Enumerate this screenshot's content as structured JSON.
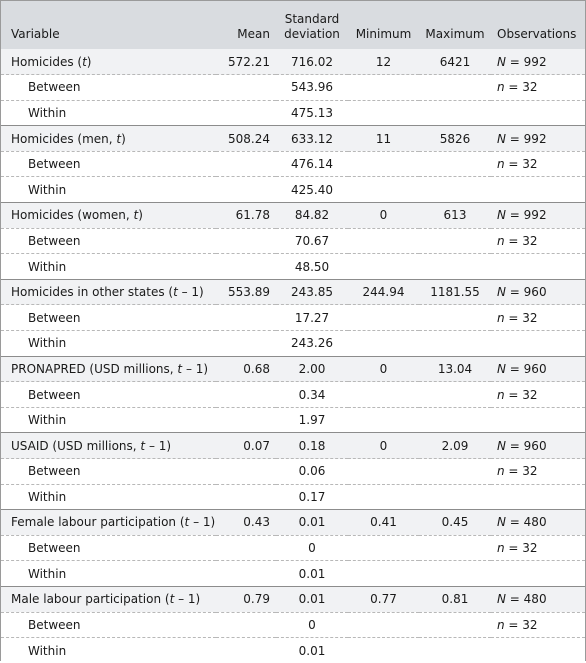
{
  "header": {
    "variable": "Variable",
    "mean": "Mean",
    "sd_line1": "Standard",
    "sd_line2": "deviation",
    "minimum": "Minimum",
    "maximum": "Maximum",
    "observations": "Observations"
  },
  "rows": [
    {
      "kind": "main",
      "label": "Homicides (",
      "label_it": "t",
      "label_post": ")",
      "mean": "572.21",
      "sd": "716.02",
      "min": "12",
      "max": "6421",
      "obs_var": "N",
      "obs_val": " = 992"
    },
    {
      "kind": "sub",
      "label": "Between",
      "sd": "543.96",
      "obs_var": "n",
      "obs_val": " = 32"
    },
    {
      "kind": "sub",
      "label": "Within",
      "sd": "475.13"
    },
    {
      "kind": "main",
      "label": "Homicides (men, ",
      "label_it": "t",
      "label_post": ")",
      "mean": "508.24",
      "sd": "633.12",
      "min": "11",
      "max": "5826",
      "obs_var": "N",
      "obs_val": " = 992"
    },
    {
      "kind": "sub",
      "label": "Between",
      "sd": "476.14",
      "obs_var": "n",
      "obs_val": " = 32"
    },
    {
      "kind": "sub",
      "label": "Within",
      "sd": "425.40"
    },
    {
      "kind": "main",
      "label": "Homicides (women, ",
      "label_it": "t",
      "label_post": ")",
      "mean": "61.78",
      "sd": "84.82",
      "min": "0",
      "max": "613",
      "obs_var": "N",
      "obs_val": " = 992"
    },
    {
      "kind": "sub",
      "label": "Between",
      "sd": "70.67",
      "obs_var": "n",
      "obs_val": " = 32"
    },
    {
      "kind": "sub",
      "label": "Within",
      "sd": "48.50"
    },
    {
      "kind": "main",
      "label": "Homicides in other states (",
      "label_it": "t",
      "label_post": " – 1)",
      "mean": "553.89",
      "sd": "243.85",
      "min": "244.94",
      "max": "1181.55",
      "obs_var": "N",
      "obs_val": " = 960"
    },
    {
      "kind": "sub",
      "label": "Between",
      "sd": "17.27",
      "obs_var": "n",
      "obs_val": " = 32"
    },
    {
      "kind": "sub",
      "label": "Within",
      "sd": "243.26"
    },
    {
      "kind": "main",
      "label": "PRONAPRED (USD millions, ",
      "label_it": "t",
      "label_post": " – 1)",
      "mean": "0.68",
      "sd": "2.00",
      "min": "0",
      "max": "13.04",
      "obs_var": "N",
      "obs_val": " = 960"
    },
    {
      "kind": "sub",
      "label": "Between",
      "sd": "0.34",
      "obs_var": "n",
      "obs_val": " = 32"
    },
    {
      "kind": "sub",
      "label": "Within",
      "sd": "1.97"
    },
    {
      "kind": "main",
      "label": "USAID (USD millions, ",
      "label_it": "t",
      "label_post": " – 1)",
      "mean": "0.07",
      "sd": "0.18",
      "min": "0",
      "max": "2.09",
      "obs_var": "N",
      "obs_val": " = 960"
    },
    {
      "kind": "sub",
      "label": "Between",
      "sd": "0.06",
      "obs_var": "n",
      "obs_val": " = 32"
    },
    {
      "kind": "sub",
      "label": "Within",
      "sd": "0.17"
    },
    {
      "kind": "main",
      "label": "Female labour participation (",
      "label_it": "t",
      "label_post": " – 1)",
      "mean": "0.43",
      "sd": "0.01",
      "min": "0.41",
      "max": "0.45",
      "obs_var": "N",
      "obs_val": " = 480"
    },
    {
      "kind": "sub",
      "label": "Between",
      "sd": "0",
      "obs_var": "n",
      "obs_val": " = 32"
    },
    {
      "kind": "sub",
      "label": "Within",
      "sd": "0.01"
    },
    {
      "kind": "main",
      "label": "Male labour participation (",
      "label_it": "t",
      "label_post": " – 1)",
      "mean": "0.79",
      "sd": "0.01",
      "min": "0.77",
      "max": "0.81",
      "obs_var": "N",
      "obs_val": " = 480"
    },
    {
      "kind": "sub",
      "label": "Between",
      "sd": "0",
      "obs_var": "n",
      "obs_val": " = 32"
    },
    {
      "kind": "sub",
      "label": "Within",
      "sd": "0.01"
    }
  ]
}
